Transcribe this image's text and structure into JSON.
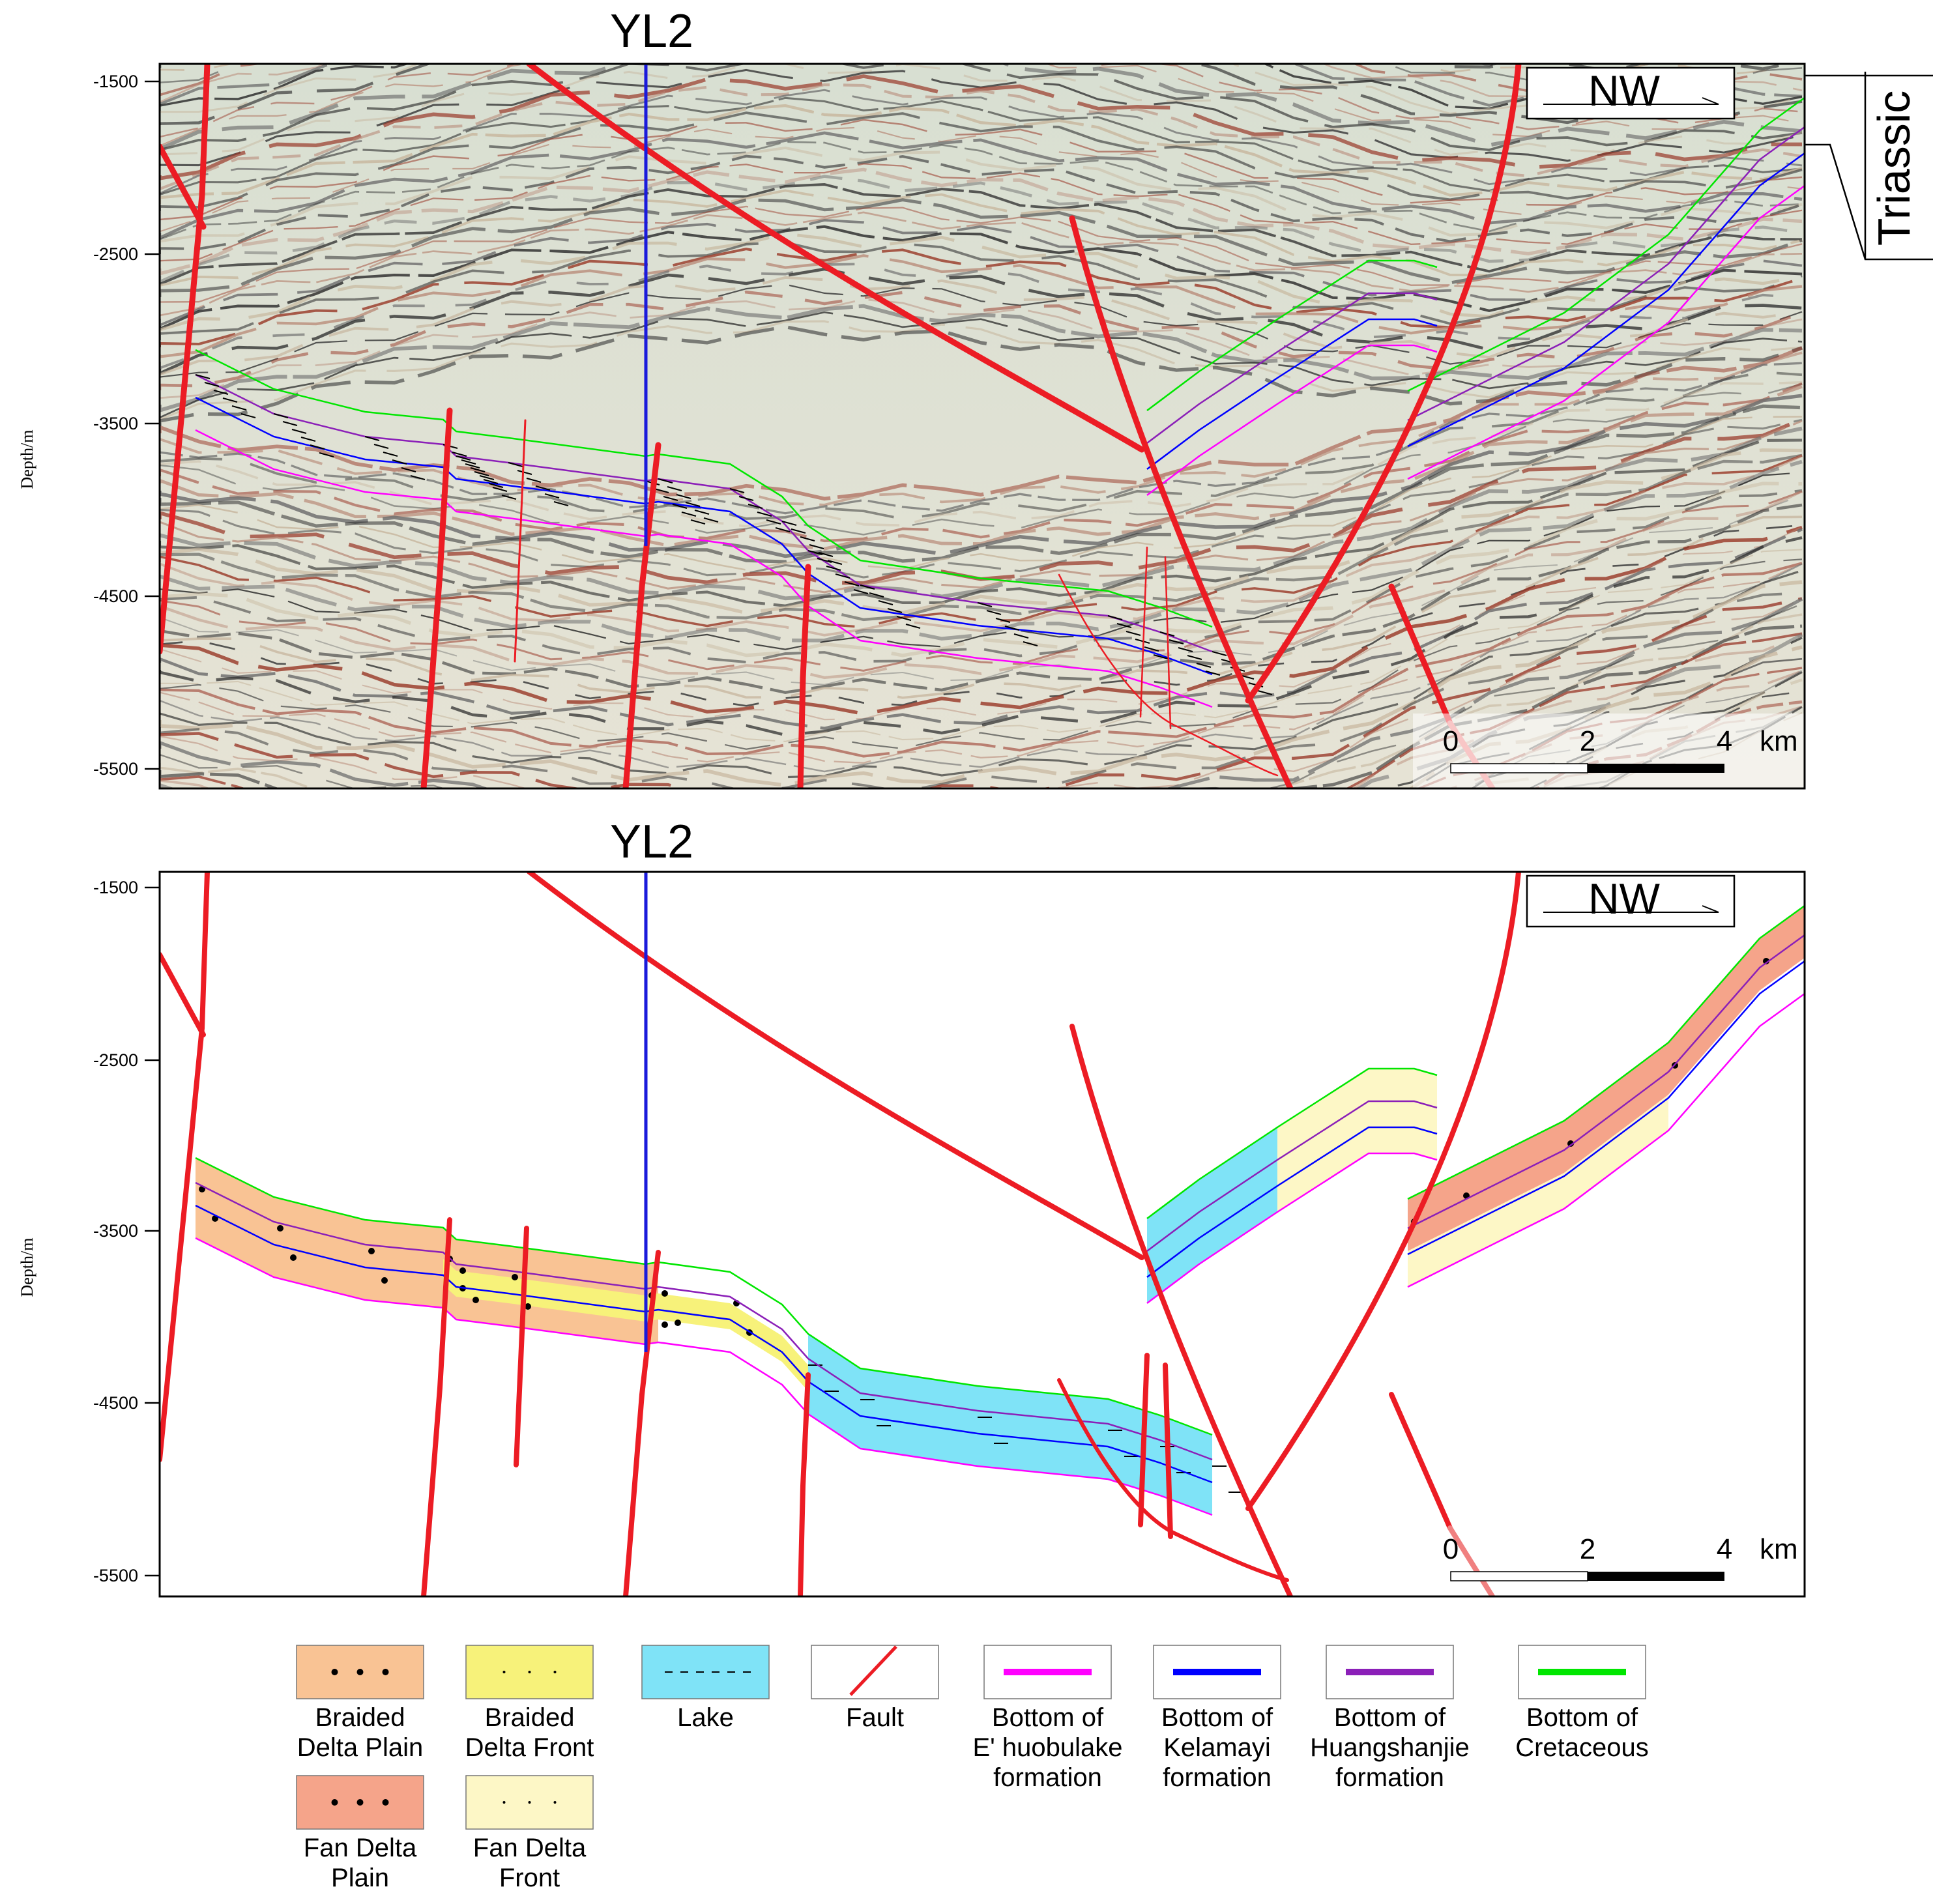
{
  "panels": [
    {
      "id": "seismic",
      "well_label": "YL2",
      "direction_label": "NW",
      "depth_axis": {
        "title": "Depth/m",
        "ticks": [
          "-1500",
          "-2500",
          "-3500",
          "-4500",
          "-5500"
        ]
      },
      "scale_bar": {
        "ticks": [
          "0",
          "2",
          "4"
        ],
        "unit": "km"
      },
      "side_label": "Triassic"
    },
    {
      "id": "facies",
      "well_label": "YL2",
      "direction_label": "NW",
      "depth_axis": {
        "title": "Depth/m",
        "ticks": [
          "-1500",
          "-2500",
          "-3500",
          "-4500",
          "-5500"
        ]
      },
      "scale_bar": {
        "ticks": [
          "0",
          "2",
          "4"
        ],
        "unit": "km"
      }
    }
  ],
  "legend": [
    {
      "id": "braided-delta-plain",
      "label_lines": [
        "Braided",
        "Delta Plain"
      ],
      "kind": "fill",
      "color": "#f9c394",
      "pattern": "dots-large"
    },
    {
      "id": "braided-delta-front",
      "label_lines": [
        "Braided",
        "Delta Front"
      ],
      "kind": "fill",
      "color": "#f7f27a",
      "pattern": "dots-small"
    },
    {
      "id": "lake",
      "label_lines": [
        "Lake"
      ],
      "kind": "fill",
      "color": "#7fe3f7",
      "pattern": "dashes"
    },
    {
      "id": "fault",
      "label_lines": [
        "Fault"
      ],
      "kind": "line",
      "color": "#ec1c24"
    },
    {
      "id": "bottom-ehuobulake",
      "label_lines": [
        "Bottom of",
        "E' huobulake",
        "formation"
      ],
      "kind": "hline",
      "color": "#ff00ff"
    },
    {
      "id": "bottom-kelamayi",
      "label_lines": [
        "Bottom of",
        "Kelamayi",
        "formation"
      ],
      "kind": "hline",
      "color": "#0000ff"
    },
    {
      "id": "bottom-huangshanjie",
      "label_lines": [
        "Bottom  of",
        "Huangshanjie",
        "formation"
      ],
      "kind": "hline",
      "color": "#8b1fb8"
    },
    {
      "id": "bottom-cretaceous",
      "label_lines": [
        "Bottom of",
        "Cretaceous"
      ],
      "kind": "hline",
      "color": "#00e600"
    },
    {
      "id": "fan-delta-plain",
      "label_lines": [
        "Fan Delta",
        "Plain"
      ],
      "kind": "fill",
      "color": "#f5a48a",
      "pattern": "dots-large"
    },
    {
      "id": "fan-delta-front",
      "label_lines": [
        "Fan Delta",
        "Front"
      ],
      "kind": "fill",
      "color": "#fdf7c6",
      "pattern": "dots-small"
    }
  ],
  "colors": {
    "fault": "#ec1c24",
    "well": "#1a1adb",
    "ehuobulake": "#ff00ff",
    "kelamayi": "#0000ff",
    "huangshanjie": "#8b1fb8",
    "cretaceous": "#00e600",
    "braided_delta_plain": "#f9c394",
    "braided_delta_front": "#f7f27a",
    "lake": "#7fe3f7",
    "fan_delta_plain": "#f5a48a",
    "fan_delta_front": "#fdf7c6"
  }
}
